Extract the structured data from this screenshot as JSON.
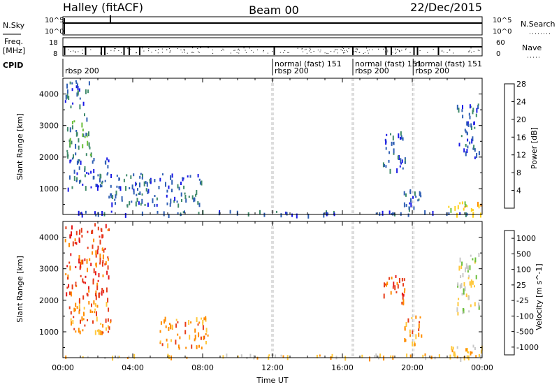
{
  "header": {
    "left": "Halley (fitACF)",
    "center": "Beam 00",
    "right": "22/Dec/2015"
  },
  "strips": {
    "nsky_label": "N.Sky",
    "nsearch_label": "N.Search",
    "freq_label_top": "Freq.",
    "freq_label_bottom": "[MHz]",
    "nave_label": "Nave",
    "cpid_label": "CPID",
    "nsky_ticks_left": [
      "10^5",
      "10^0"
    ],
    "nsky_ticks_right": [
      "10^5",
      "10^0"
    ],
    "freq_ticks_left": [
      "18",
      "8"
    ],
    "nave_ticks_right": [
      "60",
      "0"
    ],
    "cpid_segments": [
      {
        "start_hour": 0.0,
        "end_hour": 12.0,
        "top": "",
        "bottom": "rbsp 200"
      },
      {
        "start_hour": 12.0,
        "end_hour": 16.6,
        "top": "normal (fast) 151",
        "bottom": "rbsp 200"
      },
      {
        "start_hour": 16.6,
        "end_hour": 20.05,
        "top": "normal (fast) 151",
        "bottom": "rbsp 200"
      },
      {
        "start_hour": 20.05,
        "end_hour": 24.0,
        "top": "normal (fast) 151",
        "bottom": "rbsp 200"
      }
    ]
  },
  "chart_data": [
    {
      "type": "heatmap",
      "name": "power",
      "xlabel": "",
      "ylabel": "Slant Range [km]",
      "xlim": [
        0,
        24
      ],
      "ylim": [
        180,
        4500
      ],
      "yticks": [
        1000,
        2000,
        3000,
        4000
      ],
      "colorbar_label": "Power [dB]",
      "colorbar_ticks": [
        "4",
        "8",
        "12",
        "16",
        "20",
        "24",
        "28"
      ],
      "colorbar_colors": [
        "#1a1ae6",
        "#2f5fb4",
        "#3f8a6a",
        "#6abf3a",
        "#ffd21e",
        "#ff8c00",
        "#e61a1a"
      ],
      "echo_clusters": [
        {
          "t": [
            0.1,
            1.6
          ],
          "r": [
            3600,
            4450
          ],
          "color": 1
        },
        {
          "t": [
            0.2,
            1.6
          ],
          "r": [
            2000,
            3400
          ],
          "color": 2
        },
        {
          "t": [
            0.2,
            2.8
          ],
          "r": [
            1000,
            2000
          ],
          "color": 1
        },
        {
          "t": [
            0.0,
            24.0
          ],
          "r": [
            200,
            320
          ],
          "color": 1
        },
        {
          "t": [
            2.6,
            8.0
          ],
          "r": [
            500,
            1500
          ],
          "color": 1
        },
        {
          "t": [
            18.3,
            19.6
          ],
          "r": [
            1600,
            2900
          ],
          "color": 1
        },
        {
          "t": [
            19.5,
            20.5
          ],
          "r": [
            400,
            1000
          ],
          "color": 1
        },
        {
          "t": [
            22.0,
            24.0
          ],
          "r": [
            200,
            600
          ],
          "color": 4
        },
        {
          "t": [
            22.5,
            23.8
          ],
          "r": [
            2000,
            3700
          ],
          "color": 1
        }
      ]
    },
    {
      "type": "heatmap",
      "name": "velocity",
      "xlabel": "Time UT",
      "ylabel": "Slant Range [km]",
      "xlim": [
        0,
        24
      ],
      "ylim": [
        180,
        4500
      ],
      "xticks": [
        "00:00",
        "04:00",
        "08:00",
        "12:00",
        "16:00",
        "20:00",
        "00:00"
      ],
      "yticks": [
        1000,
        2000,
        3000,
        4000
      ],
      "colorbar_label": "Velocity [m s^-1]",
      "colorbar_ticks": [
        "1000",
        "500",
        "100",
        "25",
        "-25",
        "-100",
        "-500",
        "-1000"
      ],
      "colorbar_colors": [
        "#1f3fbf",
        "#2e7d32",
        "#6abf3a",
        "#c8c8c8",
        "#ffc83c",
        "#ff8c00",
        "#e63c1a",
        "#e61a1a"
      ],
      "echo_clusters": [
        {
          "t": [
            0.1,
            2.6
          ],
          "r": [
            2200,
            4450
          ],
          "color": 6
        },
        {
          "t": [
            0.2,
            2.8
          ],
          "r": [
            1000,
            2200
          ],
          "color": 5
        },
        {
          "t": [
            0.0,
            24.0
          ],
          "r": [
            200,
            320
          ],
          "color": 4
        },
        {
          "t": [
            5.5,
            8.3
          ],
          "r": [
            500,
            1500
          ],
          "color": 5
        },
        {
          "t": [
            18.3,
            19.6
          ],
          "r": [
            1900,
            2900
          ],
          "color": 6
        },
        {
          "t": [
            19.5,
            20.5
          ],
          "r": [
            600,
            1600
          ],
          "color": 5
        },
        {
          "t": [
            22.0,
            24.0
          ],
          "r": [
            200,
            600
          ],
          "color": 4
        },
        {
          "t": [
            22.5,
            23.8
          ],
          "r": [
            1600,
            3600
          ],
          "color": 3
        }
      ]
    }
  ]
}
